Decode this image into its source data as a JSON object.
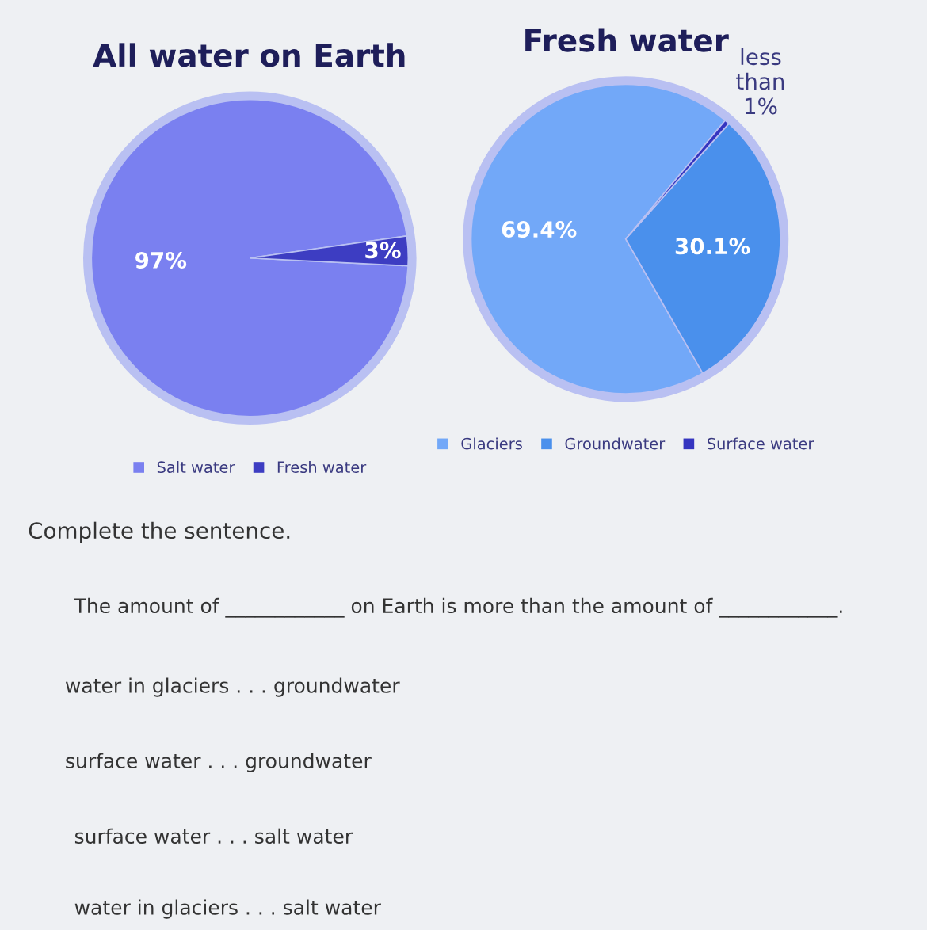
{
  "chart_data": [
    {
      "type": "pie",
      "title": "All water on Earth",
      "categories": [
        "Salt water",
        "Fresh water"
      ],
      "values": [
        97,
        3
      ],
      "colors": [
        "#7a80f0",
        "#3d3dc2"
      ],
      "value_labels": [
        "97%",
        "3%"
      ],
      "legend": "bottom"
    },
    {
      "type": "pie",
      "title": "Fresh water",
      "categories": [
        "Glaciers",
        "Groundwater",
        "Surface water"
      ],
      "values": [
        69.4,
        30.1,
        0.5
      ],
      "colors": [
        "#72a8f8",
        "#4a90ec",
        "#3535c0"
      ],
      "value_labels": [
        "69.4%",
        "30.1%",
        "less\nthan\n1%"
      ],
      "legend": "bottom"
    },
    {
      "type": "other",
      "title": "Complete the sentence.",
      "annotations": [
        "The amount of ____________ on Earth is more than the amount of ____________.",
        "water in glaciers . . . groundwater",
        "surface water . . . groundwater",
        "surface water . . . salt water",
        "water in glaciers . . . salt water"
      ]
    }
  ]
}
